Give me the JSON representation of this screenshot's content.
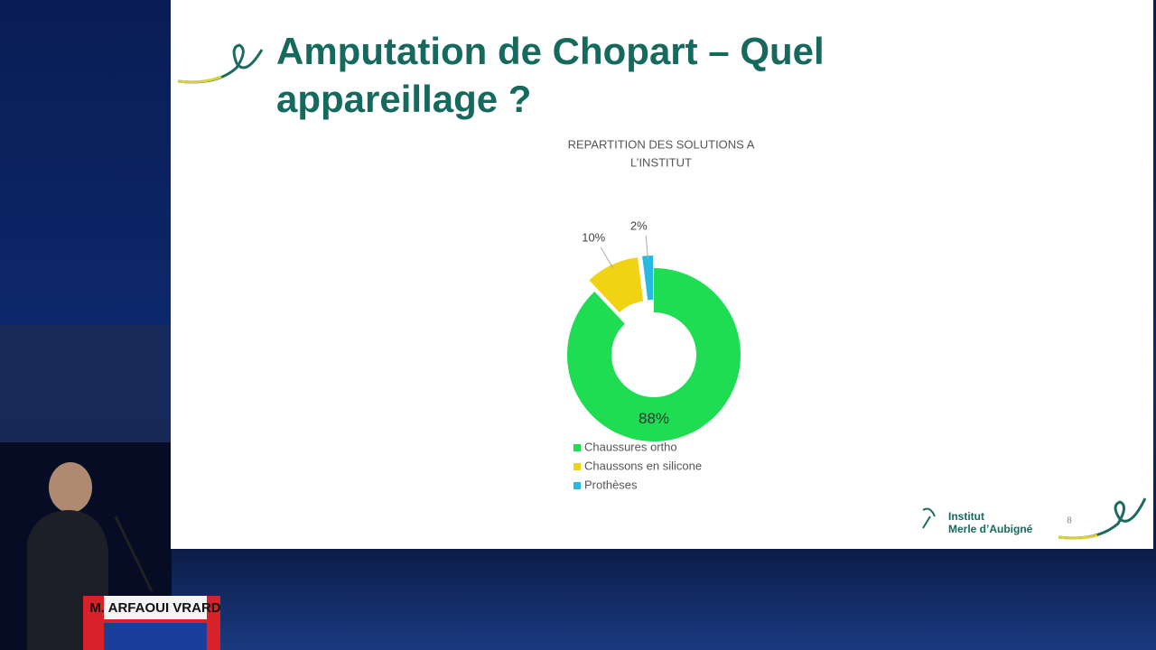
{
  "slide": {
    "title_lines": [
      "Amputation de Chopart – Quel",
      "appareillage ?"
    ],
    "page_number": "8",
    "logo": [
      "Institut",
      "Merle d’Aubigné"
    ]
  },
  "podium": {
    "name": "M. ARFAOUI VRARD"
  },
  "chart_data": {
    "type": "pie",
    "donut": true,
    "title": [
      "REPARTITION DES SOLUTIONS A",
      "L’INSTITUT"
    ],
    "categories": [
      "Chaussures ortho",
      "Chaussons en silicone",
      "Prothèses"
    ],
    "values": [
      88,
      10,
      2
    ],
    "value_labels": [
      "88%",
      "10%",
      "2%"
    ],
    "colors": [
      "#1fdd52",
      "#f0d414",
      "#27b9e2"
    ]
  }
}
